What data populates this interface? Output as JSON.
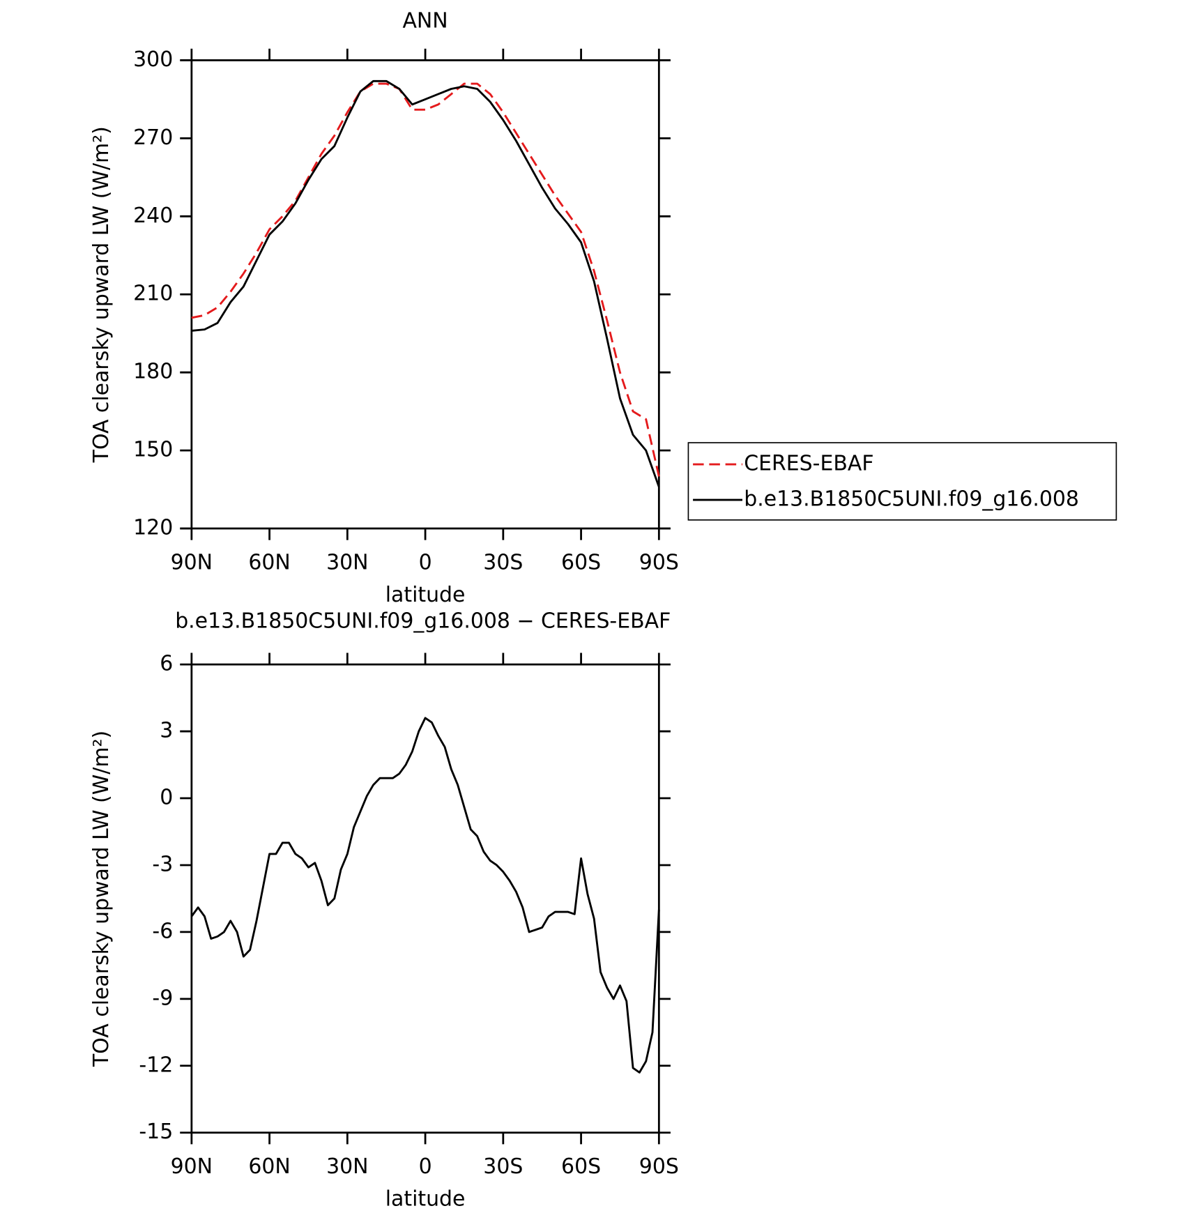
{
  "chart_data": [
    {
      "type": "line",
      "title": "ANN",
      "xlabel": "latitude",
      "ylabel": "TOA clearsky upward LW (W/m²)",
      "x": [
        90,
        85,
        80,
        75,
        70,
        65,
        60,
        55,
        50,
        45,
        40,
        35,
        30,
        25,
        20,
        15,
        10,
        5,
        0,
        -5,
        -10,
        -15,
        -20,
        -25,
        -30,
        -35,
        -40,
        -45,
        -50,
        -55,
        -60,
        -65,
        -70,
        -75,
        -80,
        -85,
        -90
      ],
      "series": [
        {
          "name": "CERES-EBAF",
          "color": "#e41a1c",
          "dash": "dashed",
          "values": [
            201,
            202,
            205,
            211,
            218,
            226,
            235,
            240,
            246,
            255,
            264,
            271,
            280,
            288,
            291,
            291,
            289,
            281,
            281,
            283,
            287,
            291,
            291,
            287,
            280,
            272,
            264,
            256,
            248,
            241,
            234,
            219,
            200,
            180,
            165,
            162,
            140
          ]
        },
        {
          "name": "b.e13.B1850C5UNI.f09_g16.008",
          "color": "#000000",
          "dash": "solid",
          "values": [
            196,
            196.5,
            199,
            207,
            213,
            223,
            233,
            238,
            245,
            254,
            262,
            267,
            278,
            288,
            292,
            292,
            289,
            283,
            285,
            287,
            289,
            290,
            289,
            284,
            277,
            269,
            260,
            251,
            243,
            237,
            230,
            215,
            193,
            170,
            156,
            150,
            136
          ]
        }
      ],
      "xlim": [
        90,
        -90
      ],
      "xticks": [
        {
          "value": 90,
          "label": "90N"
        },
        {
          "value": 60,
          "label": "60N"
        },
        {
          "value": 30,
          "label": "30N"
        },
        0,
        {
          "value": -30,
          "label": "30S"
        },
        {
          "value": -60,
          "label": "60S"
        },
        {
          "value": -90,
          "label": "90S"
        }
      ],
      "ylim": [
        120,
        300
      ],
      "yticks": [
        120,
        150,
        180,
        210,
        240,
        270,
        300
      ],
      "legend": "right"
    },
    {
      "type": "line",
      "title": "b.e13.B1850C5UNI.f09_g16.008 − CERES-EBAF",
      "xlabel": "latitude",
      "ylabel": "TOA clearsky upward LW (W/m²)",
      "x": [
        90,
        87.5,
        85,
        82.5,
        80,
        77.5,
        75,
        72.5,
        70,
        67.5,
        65,
        62.5,
        60,
        57.5,
        55,
        52.5,
        50,
        47.5,
        45,
        42.5,
        40,
        37.5,
        35,
        32.5,
        30,
        27.5,
        25,
        22.5,
        20,
        17.5,
        15,
        12.5,
        10,
        7.5,
        5,
        2.5,
        0,
        -2.5,
        -5,
        -7.5,
        -10,
        -12.5,
        -15,
        -17.5,
        -20,
        -22.5,
        -25,
        -27.5,
        -30,
        -32.5,
        -35,
        -37.5,
        -40,
        -42.5,
        -45,
        -47.5,
        -50,
        -52.5,
        -55,
        -57.5,
        -60,
        -62.5,
        -65,
        -67.5,
        -70,
        -72.5,
        -75,
        -77.5,
        -80,
        -82.5,
        -85,
        -87.5,
        -90
      ],
      "values": [
        -5.3,
        -4.9,
        -5.3,
        -6.3,
        -6.2,
        -6.0,
        -5.5,
        -6.0,
        -7.1,
        -6.8,
        -5.5,
        -4.0,
        -2.5,
        -2.5,
        -2.0,
        -2.0,
        -2.5,
        -2.7,
        -3.1,
        -2.9,
        -3.7,
        -4.8,
        -4.5,
        -3.2,
        -2.5,
        -1.3,
        -0.6,
        0.1,
        0.6,
        0.9,
        0.9,
        0.9,
        1.1,
        1.5,
        2.1,
        3.0,
        3.6,
        3.4,
        2.8,
        2.3,
        1.3,
        0.6,
        -0.4,
        -1.4,
        -1.7,
        -2.4,
        -2.8,
        -3.0,
        -3.3,
        -3.7,
        -4.2,
        -4.9,
        -6.0,
        -5.9,
        -5.8,
        -5.3,
        -5.1,
        -5.1,
        -5.1,
        -5.2,
        -2.7,
        -4.3,
        -5.4,
        -7.8,
        -8.5,
        -9.0,
        -8.4,
        -9.1,
        -12.1,
        -12.3,
        -11.8,
        -10.5,
        -5.0
      ],
      "color": "#000000",
      "xlim": [
        90,
        -90
      ],
      "xticks": [
        {
          "value": 90,
          "label": "90N"
        },
        {
          "value": 60,
          "label": "60N"
        },
        {
          "value": 30,
          "label": "30N"
        },
        0,
        {
          "value": -30,
          "label": "30S"
        },
        {
          "value": -60,
          "label": "60S"
        },
        {
          "value": -90,
          "label": "90S"
        }
      ],
      "ylim": [
        -15,
        6
      ],
      "yticks": [
        -15,
        -12,
        -9,
        -6,
        -3,
        0,
        3,
        6
      ]
    }
  ]
}
